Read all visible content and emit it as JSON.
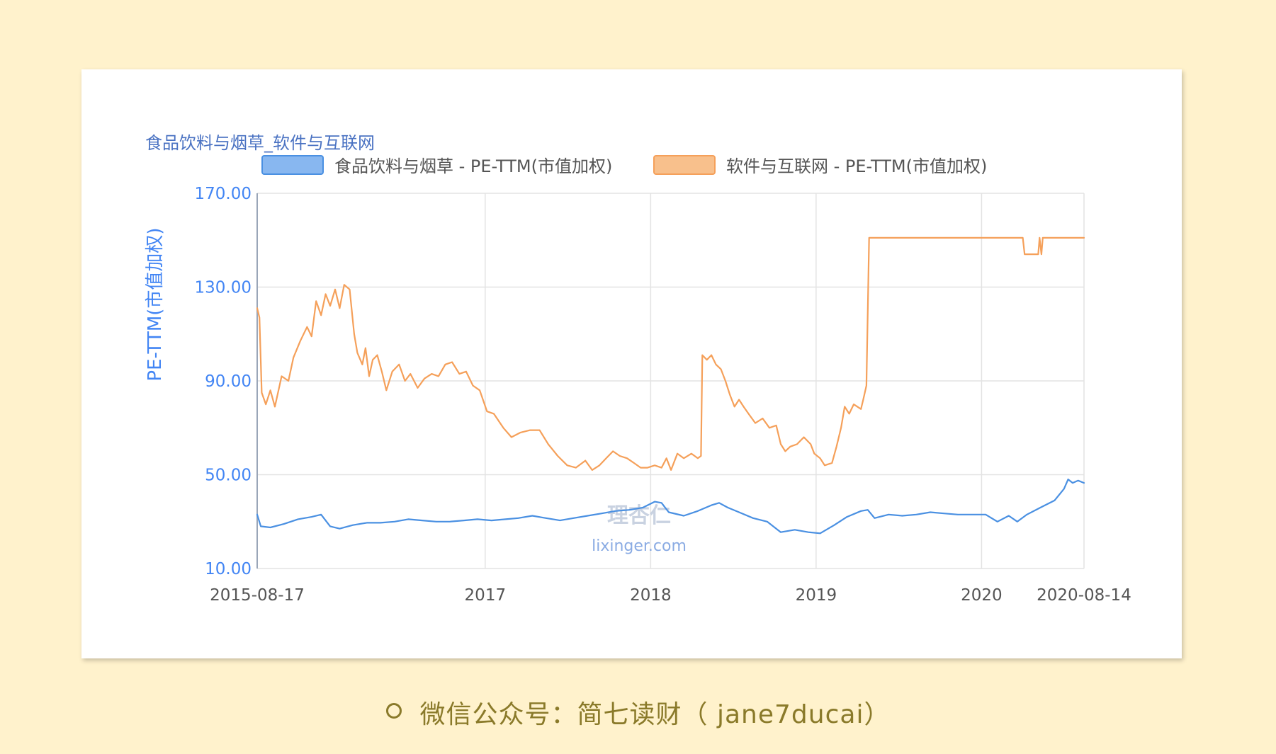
{
  "caption": {
    "text": "微信公众号：简七读财（ jane7ducai）"
  },
  "watermark": {
    "cn": "理杏仁",
    "url": "lixinger.com"
  },
  "chart_data": {
    "type": "line",
    "title": "食品饮料与烟草_软件与互联网",
    "ylabel": "PE-TTM(市值加权)",
    "xlabel": "",
    "ylim": [
      10,
      170
    ],
    "yticks": [
      "170.00",
      "130.00",
      "90.00",
      "50.00",
      "10.00"
    ],
    "yticks_values": [
      170,
      130,
      90,
      50,
      10
    ],
    "xlim": [
      "2015-08-17",
      "2020-08-14"
    ],
    "xticks": [
      "2015-08-17",
      "2017",
      "2018",
      "2019",
      "2020",
      "2020-08-14"
    ],
    "xticks_dates": [
      "2015-08-17",
      "2017-01-01",
      "2018-01-01",
      "2019-01-01",
      "2020-01-01",
      "2020-08-14"
    ],
    "grid": true,
    "legend": "top",
    "series": [
      {
        "name": "食品饮料与烟草 - PE-TTM(市值加权)",
        "color": "#4a90e2",
        "points": [
          [
            "2015-08-17",
            33
          ],
          [
            "2015-08-25",
            28
          ],
          [
            "2015-09-15",
            27.5
          ],
          [
            "2015-10-15",
            29
          ],
          [
            "2015-11-15",
            31
          ],
          [
            "2015-12-15",
            32
          ],
          [
            "2016-01-05",
            33
          ],
          [
            "2016-01-25",
            28
          ],
          [
            "2016-02-15",
            27
          ],
          [
            "2016-03-15",
            28.5
          ],
          [
            "2016-04-15",
            29.5
          ],
          [
            "2016-05-15",
            29.5
          ],
          [
            "2016-06-15",
            30
          ],
          [
            "2016-07-15",
            31
          ],
          [
            "2016-08-15",
            30.5
          ],
          [
            "2016-09-15",
            30
          ],
          [
            "2016-10-15",
            30
          ],
          [
            "2016-11-15",
            30.5
          ],
          [
            "2016-12-15",
            31
          ],
          [
            "2017-01-15",
            30.5
          ],
          [
            "2017-02-15",
            31
          ],
          [
            "2017-03-15",
            31.5
          ],
          [
            "2017-04-15",
            32.5
          ],
          [
            "2017-05-15",
            31.5
          ],
          [
            "2017-06-15",
            30.5
          ],
          [
            "2017-07-15",
            31.5
          ],
          [
            "2017-08-15",
            32.5
          ],
          [
            "2017-09-15",
            33.5
          ],
          [
            "2017-10-15",
            34.5
          ],
          [
            "2017-11-15",
            35
          ],
          [
            "2017-12-15",
            36
          ],
          [
            "2018-01-10",
            38.5
          ],
          [
            "2018-01-25",
            38
          ],
          [
            "2018-02-10",
            34
          ],
          [
            "2018-03-15",
            32.5
          ],
          [
            "2018-04-15",
            34.5
          ],
          [
            "2018-05-15",
            37
          ],
          [
            "2018-06-01",
            38
          ],
          [
            "2018-06-20",
            36
          ],
          [
            "2018-07-15",
            34
          ],
          [
            "2018-08-15",
            31.5
          ],
          [
            "2018-09-15",
            30
          ],
          [
            "2018-10-15",
            25.5
          ],
          [
            "2018-11-15",
            26.5
          ],
          [
            "2018-12-15",
            25.5
          ],
          [
            "2019-01-10",
            25
          ],
          [
            "2019-02-10",
            28.5
          ],
          [
            "2019-03-10",
            32
          ],
          [
            "2019-04-10",
            34.5
          ],
          [
            "2019-04-25",
            35
          ],
          [
            "2019-05-10",
            31.5
          ],
          [
            "2019-06-10",
            33
          ],
          [
            "2019-07-10",
            32.5
          ],
          [
            "2019-08-10",
            33
          ],
          [
            "2019-09-10",
            34
          ],
          [
            "2019-10-10",
            33.5
          ],
          [
            "2019-11-10",
            33
          ],
          [
            "2019-12-10",
            33
          ],
          [
            "2020-01-10",
            33
          ],
          [
            "2020-02-05",
            30
          ],
          [
            "2020-03-01",
            32.5
          ],
          [
            "2020-03-20",
            30
          ],
          [
            "2020-04-10",
            33
          ],
          [
            "2020-05-10",
            36
          ],
          [
            "2020-06-10",
            39
          ],
          [
            "2020-07-01",
            44
          ],
          [
            "2020-07-10",
            48
          ],
          [
            "2020-07-20",
            46.5
          ],
          [
            "2020-08-01",
            47.5
          ],
          [
            "2020-08-14",
            46.5
          ]
        ]
      },
      {
        "name": "软件与互联网 - PE-TTM(市值加权)",
        "color": "#f5a05a",
        "points": [
          [
            "2015-08-17",
            121
          ],
          [
            "2015-08-22",
            117
          ],
          [
            "2015-08-27",
            85
          ],
          [
            "2015-09-05",
            80
          ],
          [
            "2015-09-15",
            86
          ],
          [
            "2015-09-25",
            79
          ],
          [
            "2015-10-10",
            92
          ],
          [
            "2015-10-25",
            90
          ],
          [
            "2015-11-05",
            100
          ],
          [
            "2015-11-20",
            107
          ],
          [
            "2015-12-05",
            113
          ],
          [
            "2015-12-15",
            109
          ],
          [
            "2015-12-25",
            124
          ],
          [
            "2016-01-05",
            118
          ],
          [
            "2016-01-15",
            127
          ],
          [
            "2016-01-25",
            122
          ],
          [
            "2016-02-05",
            129
          ],
          [
            "2016-02-15",
            121
          ],
          [
            "2016-02-25",
            131
          ],
          [
            "2016-03-08",
            129
          ],
          [
            "2016-03-18",
            110
          ],
          [
            "2016-03-25",
            102
          ],
          [
            "2016-04-05",
            97
          ],
          [
            "2016-04-12",
            104
          ],
          [
            "2016-04-20",
            92
          ],
          [
            "2016-04-28",
            99
          ],
          [
            "2016-05-08",
            101
          ],
          [
            "2016-05-18",
            94
          ],
          [
            "2016-05-28",
            86
          ],
          [
            "2016-06-10",
            94
          ],
          [
            "2016-06-25",
            97
          ],
          [
            "2016-07-08",
            90
          ],
          [
            "2016-07-20",
            93
          ],
          [
            "2016-08-05",
            87
          ],
          [
            "2016-08-20",
            91
          ],
          [
            "2016-09-05",
            93
          ],
          [
            "2016-09-20",
            92
          ],
          [
            "2016-10-05",
            97
          ],
          [
            "2016-10-20",
            98
          ],
          [
            "2016-11-05",
            93
          ],
          [
            "2016-11-20",
            94
          ],
          [
            "2016-12-05",
            88
          ],
          [
            "2016-12-20",
            86
          ],
          [
            "2017-01-05",
            77
          ],
          [
            "2017-01-20",
            76
          ],
          [
            "2017-02-10",
            70
          ],
          [
            "2017-02-28",
            66
          ],
          [
            "2017-03-20",
            68
          ],
          [
            "2017-04-10",
            69
          ],
          [
            "2017-05-01",
            69
          ],
          [
            "2017-05-20",
            63
          ],
          [
            "2017-06-10",
            58
          ],
          [
            "2017-07-01",
            54
          ],
          [
            "2017-07-20",
            53
          ],
          [
            "2017-08-10",
            56
          ],
          [
            "2017-08-25",
            52
          ],
          [
            "2017-09-10",
            54
          ],
          [
            "2017-09-25",
            57
          ],
          [
            "2017-10-10",
            60
          ],
          [
            "2017-10-25",
            58
          ],
          [
            "2017-11-10",
            57
          ],
          [
            "2017-11-25",
            55
          ],
          [
            "2017-12-10",
            53
          ],
          [
            "2017-12-25",
            53
          ],
          [
            "2018-01-10",
            54
          ],
          [
            "2018-01-25",
            53
          ],
          [
            "2018-02-05",
            57
          ],
          [
            "2018-02-15",
            52
          ],
          [
            "2018-03-01",
            59
          ],
          [
            "2018-03-15",
            57
          ],
          [
            "2018-04-01",
            59
          ],
          [
            "2018-04-15",
            57
          ],
          [
            "2018-04-22",
            58
          ],
          [
            "2018-04-25",
            101
          ],
          [
            "2018-05-05",
            99
          ],
          [
            "2018-05-15",
            101
          ],
          [
            "2018-05-25",
            97
          ],
          [
            "2018-06-05",
            95
          ],
          [
            "2018-06-15",
            90
          ],
          [
            "2018-06-25",
            84
          ],
          [
            "2018-07-05",
            79
          ],
          [
            "2018-07-15",
            82
          ],
          [
            "2018-07-25",
            79
          ],
          [
            "2018-08-05",
            76
          ],
          [
            "2018-08-20",
            72
          ],
          [
            "2018-09-05",
            74
          ],
          [
            "2018-09-20",
            70
          ],
          [
            "2018-10-05",
            71
          ],
          [
            "2018-10-15",
            63
          ],
          [
            "2018-10-25",
            60
          ],
          [
            "2018-11-05",
            62
          ],
          [
            "2018-11-20",
            63
          ],
          [
            "2018-12-05",
            66
          ],
          [
            "2018-12-20",
            63
          ],
          [
            "2018-12-28",
            59
          ],
          [
            "2019-01-10",
            57
          ],
          [
            "2019-01-20",
            54
          ],
          [
            "2019-02-05",
            55
          ],
          [
            "2019-02-15",
            62
          ],
          [
            "2019-02-25",
            70
          ],
          [
            "2019-03-05",
            79
          ],
          [
            "2019-03-15",
            76
          ],
          [
            "2019-03-25",
            80
          ],
          [
            "2019-04-10",
            78
          ],
          [
            "2019-04-15",
            82
          ],
          [
            "2019-04-22",
            88
          ],
          [
            "2019-04-28",
            151
          ],
          [
            "2019-06-01",
            151
          ],
          [
            "2019-12-31",
            151
          ],
          [
            "2020-04-01",
            151
          ],
          [
            "2020-04-05",
            144
          ],
          [
            "2020-05-05",
            144
          ],
          [
            "2020-05-08",
            151
          ],
          [
            "2020-05-12",
            144
          ],
          [
            "2020-05-15",
            151
          ],
          [
            "2020-08-14",
            151
          ]
        ]
      }
    ]
  }
}
